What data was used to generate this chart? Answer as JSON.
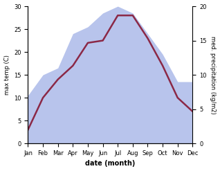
{
  "months": [
    "Jan",
    "Feb",
    "Mar",
    "Apr",
    "May",
    "Jun",
    "Jul",
    "Aug",
    "Sep",
    "Oct",
    "Nov",
    "Dec"
  ],
  "month_positions": [
    0,
    1,
    2,
    3,
    4,
    5,
    6,
    7,
    8,
    9,
    10,
    11
  ],
  "temp_max": [
    3,
    10,
    14,
    17,
    22,
    22.5,
    28,
    28,
    23,
    17,
    10,
    7
  ],
  "precip_right_scale": [
    7,
    10,
    11,
    16,
    17,
    19,
    20,
    19,
    16,
    13,
    9,
    9
  ],
  "temp_color": "#8B2846",
  "precip_color_fill": "#b8c4ec",
  "ylim_left": [
    0,
    30
  ],
  "ylim_right": [
    0,
    20
  ],
  "yticks_left": [
    0,
    5,
    10,
    15,
    20,
    25,
    30
  ],
  "yticks_right": [
    0,
    5,
    10,
    15,
    20
  ],
  "ylabel_left": "max temp (C)",
  "ylabel_right": "med. precipitation (kg/m2)",
  "xlabel": "date (month)",
  "background_color": "#ffffff",
  "line_width": 1.8,
  "fill_alpha": 1.0,
  "scale_factor": 1.5
}
